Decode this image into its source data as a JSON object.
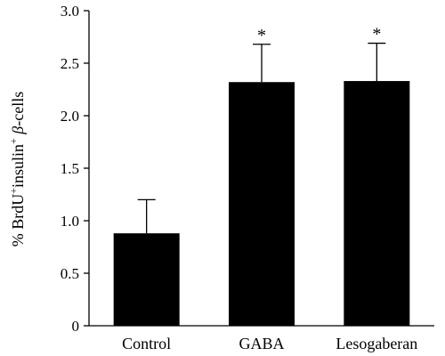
{
  "chart_data": {
    "type": "bar",
    "categories": [
      "Control",
      "GABA",
      "Lesogaberan"
    ],
    "values": [
      0.88,
      2.32,
      2.33
    ],
    "error_upper": [
      1.2,
      2.68,
      2.69
    ],
    "significance": [
      "",
      "*",
      "*"
    ],
    "ylabel": {
      "prefix": "% BrdU",
      "sup1": "+",
      "mid": "insulin",
      "sup2": "+",
      "greek": " β",
      "suffix": "-cells"
    },
    "ylim": [
      0,
      3.0
    ],
    "yticks": [
      "0",
      "0.5",
      "1.0",
      "1.5",
      "2.0",
      "2.5",
      "3.0"
    ],
    "grid": false,
    "bar_color": "#000000"
  }
}
